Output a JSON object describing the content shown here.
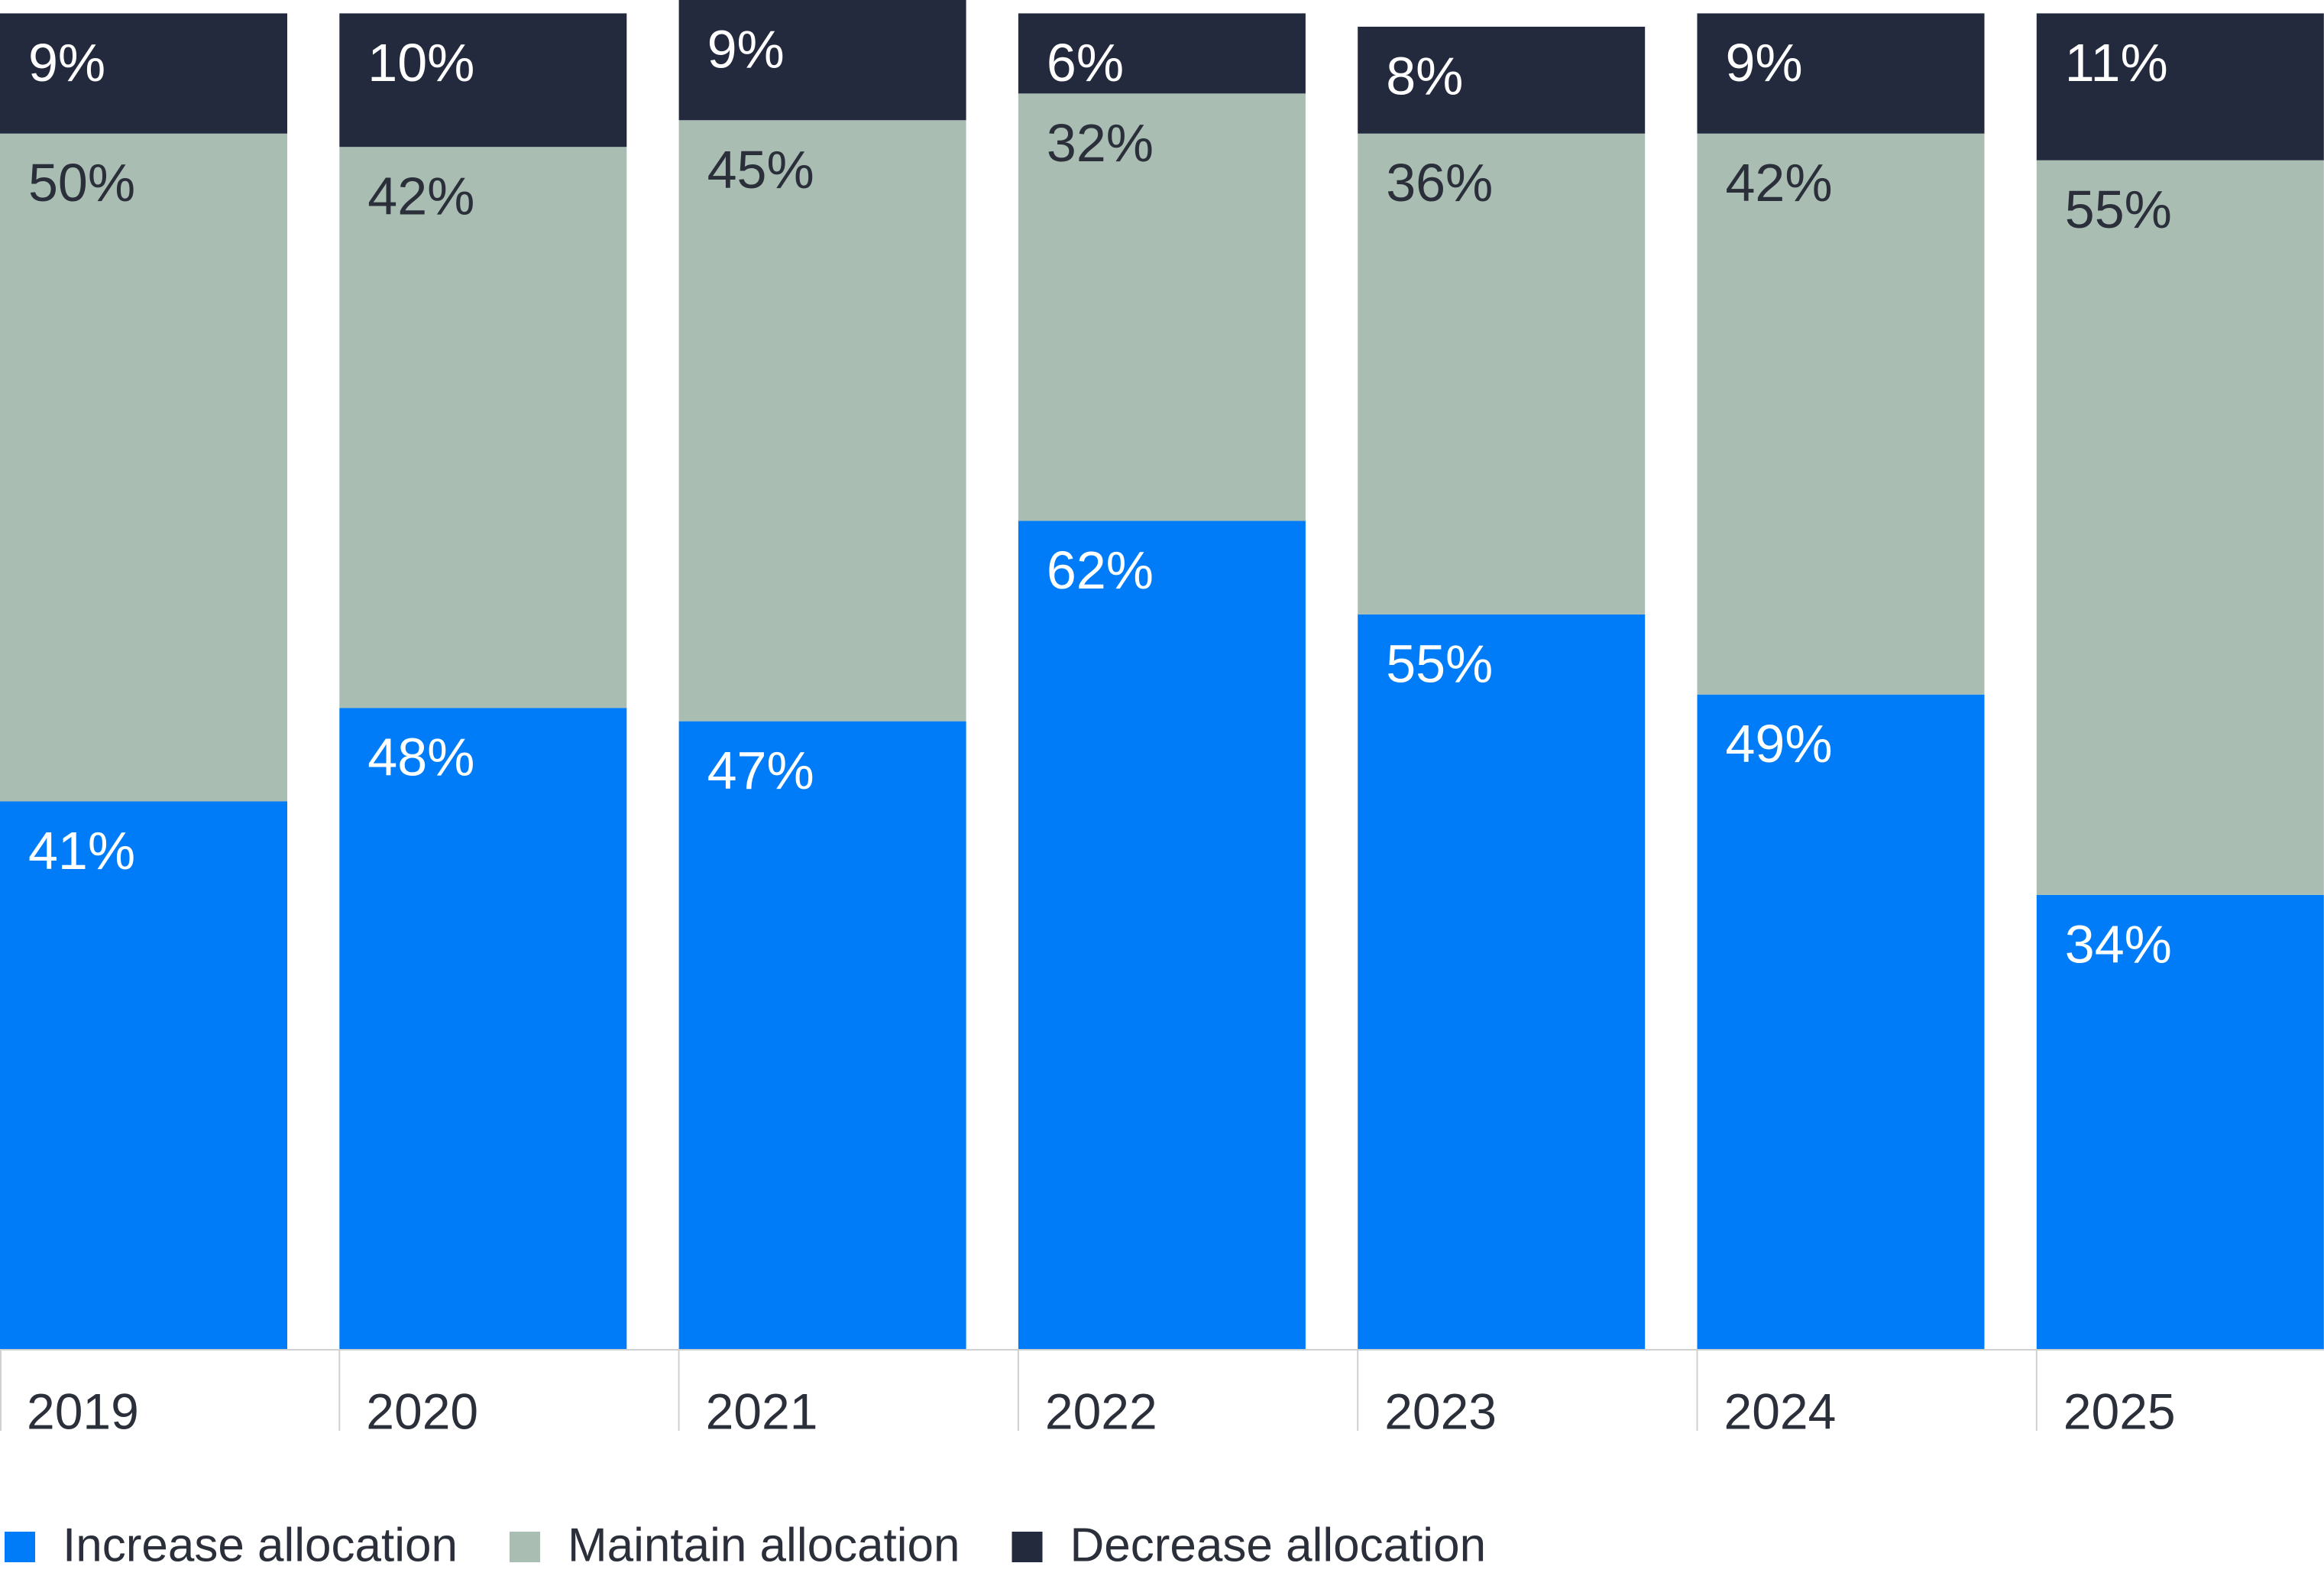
{
  "chart_data": {
    "type": "stacked-bar",
    "categories": [
      "2019",
      "2020",
      "2021",
      "2022",
      "2023",
      "2024",
      "2025"
    ],
    "series": [
      {
        "name": "Increase allocation",
        "color": "#007cf8",
        "label_color": "#ffffff",
        "values": [
          41,
          48,
          47,
          62,
          55,
          49,
          34
        ],
        "value_labels": [
          "41%",
          "48%",
          "47%",
          "62%",
          "55%",
          "49%",
          "34%"
        ]
      },
      {
        "name": "Maintain allocation",
        "color": "#a9bdb3",
        "label_color": "#2a2f3a",
        "values": [
          50,
          42,
          45,
          32,
          36,
          42,
          55
        ],
        "value_labels": [
          "50%",
          "42%",
          "45%",
          "32%",
          "36%",
          "42%",
          "55%"
        ]
      },
      {
        "name": "Decrease allocation",
        "color": "#232a3d",
        "label_color": "#ffffff",
        "values": [
          9,
          10,
          9,
          6,
          8,
          9,
          11
        ],
        "value_labels": [
          "9%",
          "10%",
          "9%",
          "6%",
          "8%",
          "9%",
          "11%"
        ]
      }
    ]
  }
}
